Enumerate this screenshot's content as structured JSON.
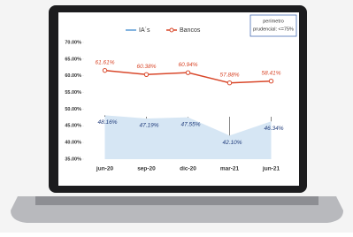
{
  "chart_data": {
    "type": "line",
    "categories": [
      "jun-20",
      "sep-20",
      "dic-20",
      "mar-21",
      "jun-21"
    ],
    "series": [
      {
        "name": "IA´s",
        "color": "#5b9bd5",
        "values": [
          48.16,
          47.19,
          47.55,
          42.1,
          46.34
        ],
        "value_labels": [
          "48.16%",
          "47.19%",
          "47.55%",
          "42.10%",
          "46.34%"
        ]
      },
      {
        "name": "Bancos",
        "color": "#d9482b",
        "values": [
          61.61,
          60.38,
          60.94,
          57.88,
          58.41
        ],
        "value_labels": [
          "61.61%",
          "60.38%",
          "60.94%",
          "57.88%",
          "58.41%"
        ]
      }
    ],
    "ylim": [
      35,
      70
    ],
    "yticks": [
      {
        "value": 35,
        "label": "35.00%"
      },
      {
        "value": 40,
        "label": "40.00%"
      },
      {
        "value": 45,
        "label": "45.00%"
      },
      {
        "value": 50,
        "label": "50.00%"
      },
      {
        "value": 55,
        "label": "55.00%"
      },
      {
        "value": 60,
        "label": "60.00%"
      },
      {
        "value": 65,
        "label": "65.00%"
      },
      {
        "value": 70,
        "label": "70.00%"
      }
    ],
    "annotation": [
      "perímetro",
      "prudencial: <=75%"
    ]
  }
}
